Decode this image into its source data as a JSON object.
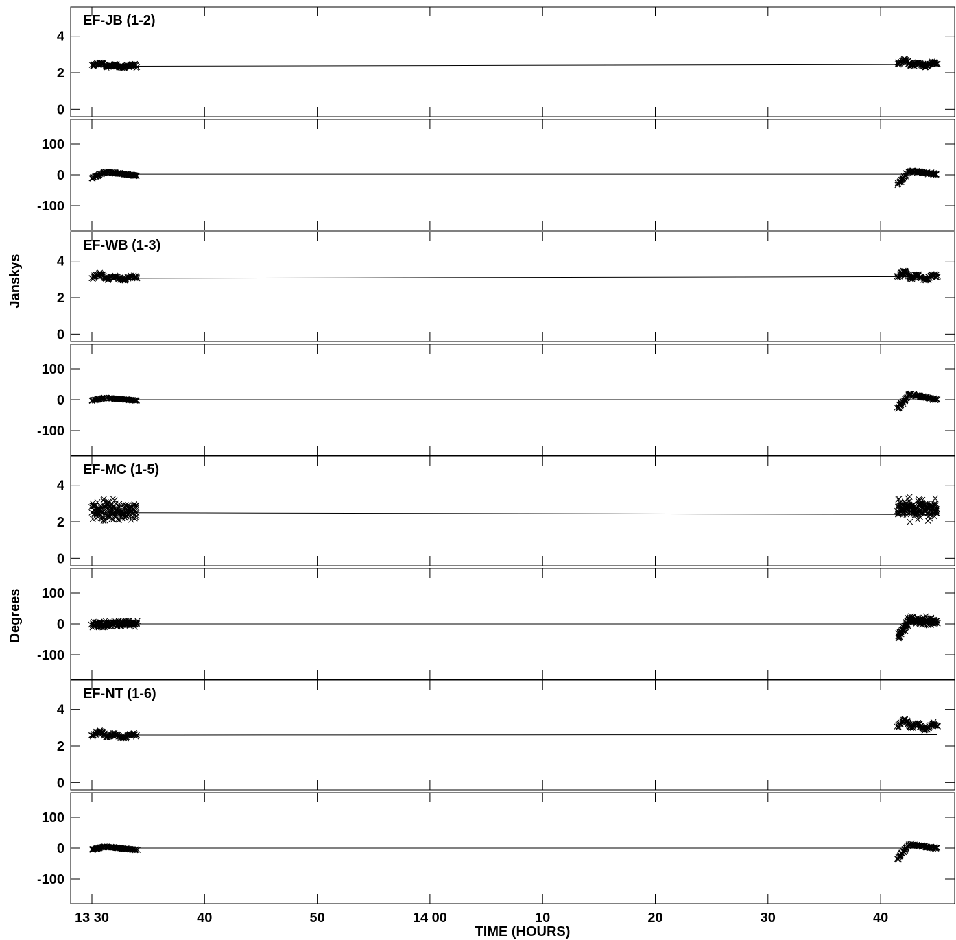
{
  "chart_data": {
    "type": "scatter",
    "xlabel": "TIME (HOURS)",
    "ylabel_amplitude": "Janskys",
    "ylabel_phase": "Degrees",
    "x_ticks": [
      {
        "value": 0,
        "label": "13 30"
      },
      {
        "value": 10,
        "label": "40"
      },
      {
        "value": 20,
        "label": "50"
      },
      {
        "value": 30,
        "label": "14 00"
      },
      {
        "value": 40,
        "label": "10"
      },
      {
        "value": 50,
        "label": "20"
      },
      {
        "value": 60,
        "label": "30"
      },
      {
        "value": 70,
        "label": "40"
      }
    ],
    "x_unit": "minutes after 13:30",
    "xlim": [
      -1.9,
      77.5
    ],
    "amp_ylim": [
      -0.4,
      5.6
    ],
    "amp_ticks": [
      "0",
      "2",
      "4"
    ],
    "phase_ylim": [
      -180,
      180
    ],
    "phase_ticks": [
      "-100",
      "0",
      "100"
    ],
    "marker": "x",
    "scans": [
      {
        "start": 0,
        "end": 4
      },
      {
        "start": 71.5,
        "end": 75
      }
    ],
    "baselines": [
      {
        "name": "EF-JB (1-2)",
        "amp_model": [
          2.35,
          2.45
        ],
        "phase_model": [
          2,
          2
        ],
        "amp_scan1": {
          "base": 2.35,
          "bump": 0.2,
          "spread": 0.12
        },
        "amp_scan2": {
          "base": 2.45,
          "bump": 0.25,
          "spread": 0.12
        },
        "phase_scan1": {
          "start": -12,
          "peak": 10,
          "end": -3,
          "spread": 3
        },
        "phase_scan2": {
          "start": -30,
          "peak": 12,
          "end": 2,
          "spread": 4
        }
      },
      {
        "name": "EF-WB (1-3)",
        "amp_model": [
          3.05,
          3.15
        ],
        "phase_model": [
          0,
          0
        ],
        "amp_scan1": {
          "base": 3.05,
          "bump": 0.25,
          "spread": 0.12
        },
        "amp_scan2": {
          "base": 3.1,
          "bump": 0.35,
          "spread": 0.12
        },
        "phase_scan1": {
          "start": -3,
          "peak": 6,
          "end": -3,
          "spread": 2
        },
        "phase_scan2": {
          "start": -30,
          "peak": 18,
          "end": 0,
          "spread": 4
        }
      },
      {
        "name": "EF-MC (1-5)",
        "amp_model": [
          2.5,
          2.4
        ],
        "phase_model": [
          0,
          0
        ],
        "amp_scan1": {
          "base": 2.6,
          "bump": 0.1,
          "spread": 0.75
        },
        "amp_scan2": {
          "base": 2.7,
          "bump": 0.1,
          "spread": 0.8
        },
        "phase_scan1": {
          "start": -2,
          "peak": 0,
          "end": 0,
          "spread": 14
        },
        "phase_scan2": {
          "start": -45,
          "peak": 15,
          "end": 5,
          "spread": 14
        }
      },
      {
        "name": "EF-NT (1-6)",
        "amp_model": [
          2.6,
          2.62
        ],
        "phase_model": [
          0,
          0
        ],
        "amp_scan1": {
          "base": 2.55,
          "bump": 0.25,
          "spread": 0.1
        },
        "amp_scan2": {
          "base": 3.05,
          "bump": 0.4,
          "spread": 0.12
        },
        "phase_scan1": {
          "start": -5,
          "peak": 5,
          "end": -6,
          "spread": 2
        },
        "phase_scan2": {
          "start": -35,
          "peak": 12,
          "end": 0,
          "spread": 4
        }
      }
    ]
  }
}
